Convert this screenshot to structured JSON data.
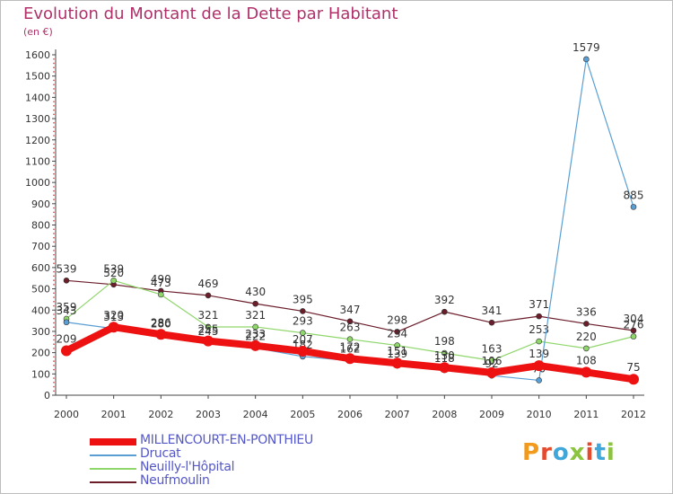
{
  "title": "Evolution du Montant de la Dette par Habitant",
  "unit_label": "(en €)",
  "logo_text": "Proxiti",
  "chart_data": {
    "type": "line",
    "title": "Evolution du Montant de la Dette par Habitant",
    "ylabel": "(en €)",
    "xlabel": "",
    "ylim": [
      0,
      1600
    ],
    "yticks": [
      0,
      100,
      200,
      300,
      400,
      500,
      600,
      700,
      800,
      900,
      1000,
      1100,
      1200,
      1300,
      1400,
      1500,
      1600
    ],
    "x": [
      "2000",
      "2001",
      "2002",
      "2003",
      "2004",
      "2005",
      "2006",
      "2007",
      "2008",
      "2009",
      "2010",
      "2011",
      "2012"
    ],
    "grid": false,
    "legend": "bottom-left",
    "series": [
      {
        "name": "Neufmoulin",
        "color": "#6b1d2a",
        "width": 1.2,
        "values": [
          539,
          520,
          490,
          469,
          430,
          395,
          347,
          298,
          392,
          341,
          371,
          336,
          304
        ],
        "labels": [
          "539",
          "520",
          "490",
          "469",
          "430",
          "395",
          "347",
          "298",
          "392",
          "341",
          "371",
          "336",
          "304"
        ]
      },
      {
        "name": "Neuilly-l'Hôpital",
        "color": "#8fd66b",
        "width": 1.2,
        "values": [
          359,
          539,
          473,
          321,
          321,
          293,
          263,
          234,
          198,
          163,
          253,
          220,
          276
        ],
        "labels": [
          "359",
          "539",
          "473",
          "321",
          "321",
          "293",
          "263",
          "234",
          "198",
          "163",
          "253",
          "220",
          "276"
        ]
      },
      {
        "name": "Drucat",
        "color": "#5a9fd4",
        "width": 1.2,
        "values": [
          343,
          313,
          280,
          245,
          222,
          182,
          162,
          139,
          118,
          92,
          70,
          1579,
          885
        ],
        "labels": [
          "343",
          "313",
          "280",
          "245",
          "222",
          "182",
          "162",
          "139",
          "118",
          "92",
          "70",
          "1579",
          "885"
        ]
      },
      {
        "name": "MILLENCOURT-EN-PONTHIEU",
        "color": "#ee1111",
        "width": 8,
        "values": [
          209,
          320,
          286,
          255,
          233,
          207,
          172,
          151,
          130,
          106,
          139,
          108,
          75
        ],
        "labels": [
          "209",
          "320",
          "286",
          "255",
          "233",
          "207",
          "172",
          "151",
          "130",
          "106",
          "139",
          "108",
          "75"
        ]
      }
    ],
    "legend_order": [
      "MILLENCOURT-EN-PONTHIEU",
      "Drucat",
      "Neuilly-l'Hôpital",
      "Neufmoulin"
    ]
  },
  "legend": [
    {
      "name": "MILLENCOURT-EN-PONTHIEU",
      "color": "#ee1111"
    },
    {
      "name": "Drucat",
      "color": "#5a9fd4"
    },
    {
      "name": "Neuilly-l'Hôpital",
      "color": "#8fd66b"
    },
    {
      "name": "Neufmoulin",
      "color": "#6b1d2a"
    }
  ]
}
